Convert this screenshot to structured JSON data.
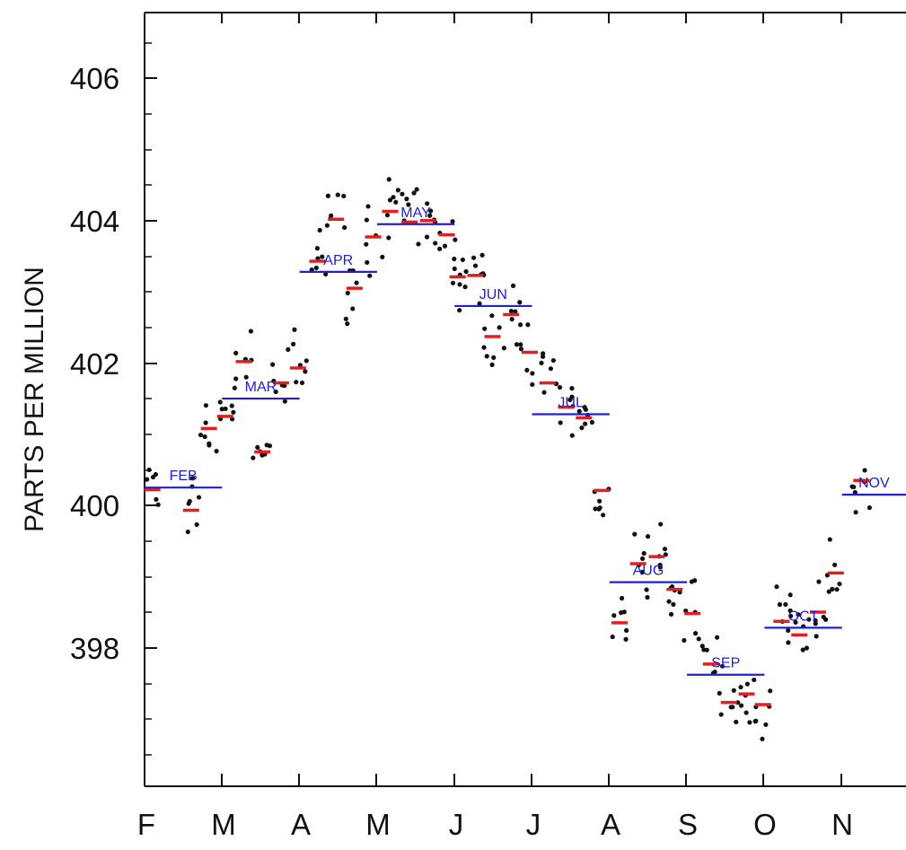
{
  "chart_data": {
    "type": "scatter",
    "title": "",
    "ylabel": "PARTS PER MILLION",
    "xlabel": "",
    "ylim": [
      396.0,
      407.0
    ],
    "yticks": [
      398,
      400,
      402,
      404,
      406
    ],
    "ytick_labels": [
      "398",
      "400",
      "402",
      "404",
      "406"
    ],
    "xtick_labels": [
      "F",
      "M",
      "A",
      "M",
      "J",
      "J",
      "A",
      "S",
      "O",
      "N"
    ],
    "colors": {
      "daily": "#111111",
      "weekly": "#e02020",
      "monthly": "#2020d0"
    },
    "monthly_means": [
      {
        "label": "FEB",
        "value": 400.25
      },
      {
        "label": "MAR",
        "value": 401.5
      },
      {
        "label": "APR",
        "value": 403.28
      },
      {
        "label": "MAY",
        "value": 403.95
      },
      {
        "label": "JUN",
        "value": 402.8
      },
      {
        "label": "JUL",
        "value": 401.28
      },
      {
        "label": "AUG",
        "value": 398.92
      },
      {
        "label": "SEP",
        "value": 397.62
      },
      {
        "label": "OCT",
        "value": 398.28
      },
      {
        "label": "NOV",
        "value": 400.15
      }
    ],
    "weekly_means": [
      {
        "x": 0.1,
        "y": 400.22
      },
      {
        "x": 0.6,
        "y": 399.93
      },
      {
        "x": 0.83,
        "y": 401.08
      },
      {
        "x": 1.04,
        "y": 401.25
      },
      {
        "x": 1.28,
        "y": 402.02
      },
      {
        "x": 1.52,
        "y": 400.75
      },
      {
        "x": 1.76,
        "y": 401.72
      },
      {
        "x": 1.98,
        "y": 401.93
      },
      {
        "x": 2.23,
        "y": 403.43
      },
      {
        "x": 2.47,
        "y": 404.02
      },
      {
        "x": 2.71,
        "y": 403.05
      },
      {
        "x": 2.95,
        "y": 403.77
      },
      {
        "x": 3.17,
        "y": 404.13
      },
      {
        "x": 3.42,
        "y": 403.98
      },
      {
        "x": 3.66,
        "y": 404.0
      },
      {
        "x": 3.9,
        "y": 403.8
      },
      {
        "x": 4.04,
        "y": 403.21
      },
      {
        "x": 4.27,
        "y": 403.23
      },
      {
        "x": 4.49,
        "y": 402.37
      },
      {
        "x": 4.73,
        "y": 402.68
      },
      {
        "x": 4.97,
        "y": 402.15
      },
      {
        "x": 5.2,
        "y": 401.72
      },
      {
        "x": 5.44,
        "y": 401.38
      },
      {
        "x": 5.67,
        "y": 401.23
      },
      {
        "x": 5.9,
        "y": 400.21
      },
      {
        "x": 6.13,
        "y": 398.35
      },
      {
        "x": 6.37,
        "y": 399.18
      },
      {
        "x": 6.61,
        "y": 399.28
      },
      {
        "x": 6.84,
        "y": 398.82
      },
      {
        "x": 7.07,
        "y": 398.48
      },
      {
        "x": 7.31,
        "y": 397.77
      },
      {
        "x": 7.54,
        "y": 397.23
      },
      {
        "x": 7.77,
        "y": 397.35
      },
      {
        "x": 7.98,
        "y": 397.2
      },
      {
        "x": 8.22,
        "y": 398.37
      },
      {
        "x": 8.45,
        "y": 398.18
      },
      {
        "x": 8.69,
        "y": 398.5
      },
      {
        "x": 8.92,
        "y": 399.05
      },
      {
        "x": 9.25,
        "y": 400.35
      }
    ]
  }
}
